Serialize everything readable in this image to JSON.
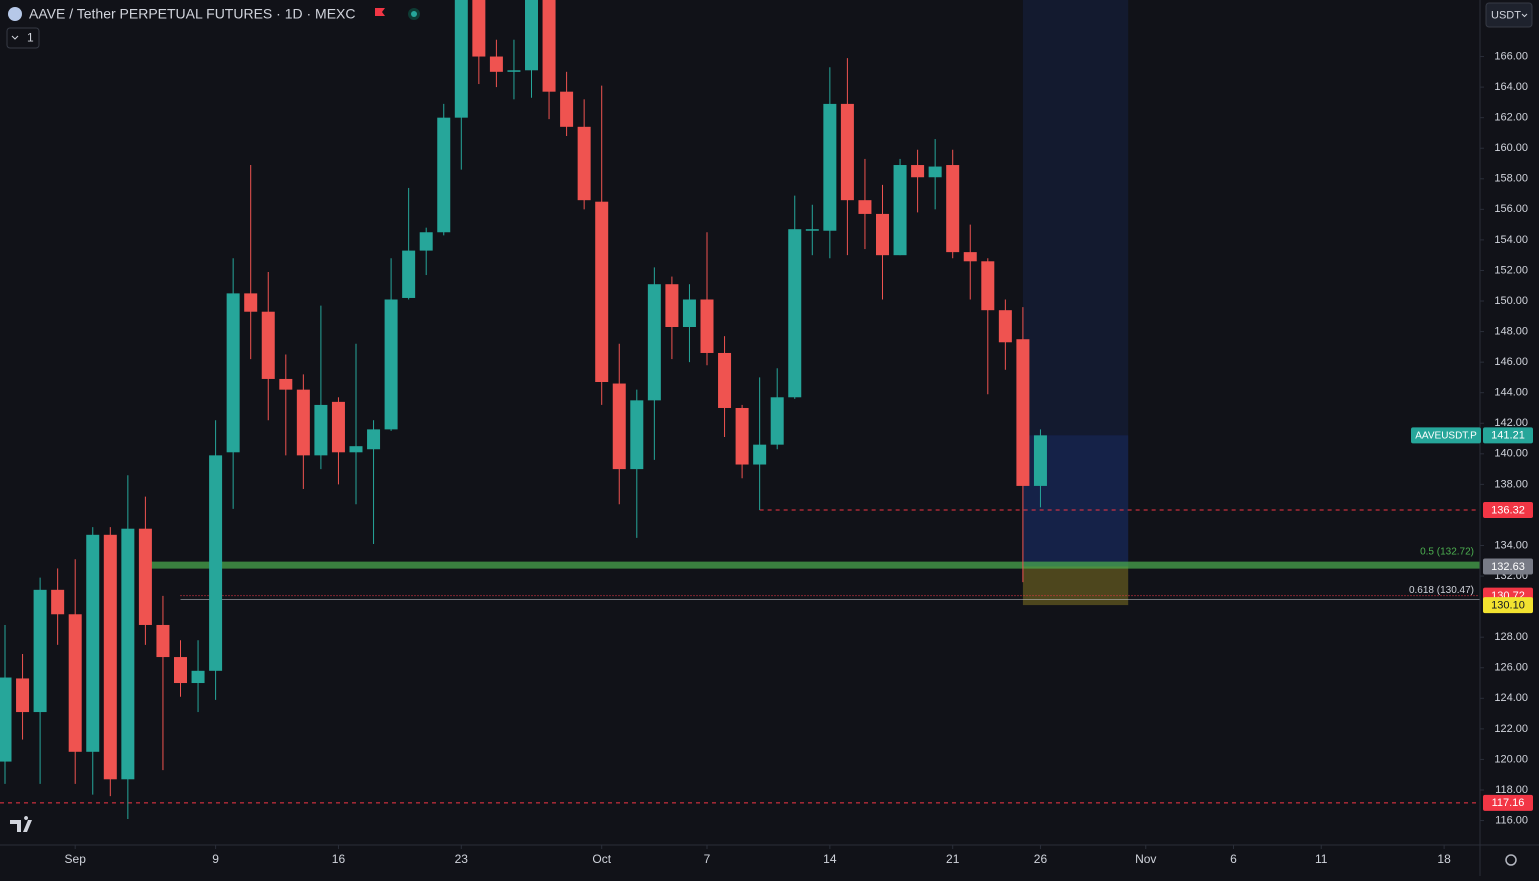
{
  "chart_data": {
    "type": "candlestick",
    "title": "AAVE / Tether PERPETUAL FUTURES · 1D · MEXC",
    "indicator_count": "1",
    "currency": "USDT",
    "symbol": "AAVEUSDT.P",
    "up_color": "#26a69a",
    "down_color": "#ef5350",
    "x": [
      "Aug 28",
      "Aug 29",
      "Aug 30",
      "Aug 31",
      "Sep 1",
      "Sep 2",
      "Sep 3",
      "Sep 4",
      "Sep 5",
      "Sep 6",
      "Sep 7",
      "Sep 8",
      "Sep 9",
      "Sep 10",
      "Sep 11",
      "Sep 12",
      "Sep 13",
      "Sep 14",
      "Sep 15",
      "Sep 16",
      "Sep 17",
      "Sep 18",
      "Sep 19",
      "Sep 20",
      "Sep 21",
      "Sep 22",
      "Sep 23",
      "Sep 24",
      "Sep 25",
      "Sep 26",
      "Sep 27",
      "Sep 28",
      "Sep 29",
      "Sep 30",
      "Oct 1",
      "Oct 2",
      "Oct 3",
      "Oct 4",
      "Oct 5",
      "Oct 6",
      "Oct 7",
      "Oct 8",
      "Oct 9",
      "Oct 10",
      "Oct 11",
      "Oct 12",
      "Oct 13",
      "Oct 14",
      "Oct 15",
      "Oct 16",
      "Oct 17",
      "Oct 18",
      "Oct 19",
      "Oct 20",
      "Oct 21",
      "Oct 22",
      "Oct 23",
      "Oct 24",
      "Oct 25",
      "Oct 26"
    ],
    "open": [
      119.86,
      125.3,
      123.1,
      131.1,
      129.5,
      120.5,
      134.7,
      118.7,
      135.1,
      128.8,
      126.7,
      125.0,
      125.8,
      140.1,
      150.5,
      149.3,
      144.9,
      144.2,
      139.9,
      143.4,
      140.1,
      140.3,
      141.6,
      150.2,
      153.3,
      154.5,
      162.0,
      171.5,
      166.0,
      165.0,
      165.1,
      170.2,
      163.7,
      161.4,
      156.5,
      144.6,
      139.0,
      143.5,
      151.1,
      148.3,
      150.1,
      146.6,
      143.0,
      139.3,
      140.6,
      143.7,
      154.6,
      154.6,
      162.9,
      156.6,
      155.7,
      153.0,
      158.9,
      158.1,
      158.9,
      153.2,
      152.6,
      149.4,
      147.5,
      137.9
    ],
    "high": [
      128.8,
      126.9,
      131.9,
      132.5,
      133.1,
      135.2,
      135.2,
      138.6,
      137.2,
      130.7,
      127.8,
      127.8,
      142.2,
      152.8,
      158.9,
      151.9,
      146.5,
      145.2,
      149.7,
      143.7,
      147.2,
      142.2,
      152.8,
      157.4,
      154.8,
      162.9,
      172.5,
      172.0,
      167.1,
      167.1,
      171.0,
      171.0,
      165.0,
      163.2,
      164.1,
      147.2,
      144.2,
      152.2,
      151.6,
      151.1,
      154.5,
      147.7,
      143.2,
      145.0,
      145.6,
      156.9,
      156.3,
      165.3,
      165.9,
      159.3,
      157.6,
      159.3,
      159.9,
      160.6,
      159.9,
      155.0,
      152.8,
      150.1,
      149.6,
      141.6
    ],
    "low": [
      118.4,
      121.3,
      118.4,
      127.5,
      118.4,
      117.7,
      117.6,
      116.1,
      127.5,
      119.3,
      124.1,
      123.1,
      123.9,
      136.4,
      146.2,
      142.2,
      139.9,
      137.7,
      139.0,
      138.0,
      136.7,
      134.1,
      141.5,
      150.1,
      151.7,
      154.3,
      158.6,
      164.2,
      164.0,
      163.2,
      163.3,
      161.9,
      160.8,
      156.0,
      143.2,
      136.7,
      134.5,
      139.6,
      146.2,
      146.0,
      145.8,
      141.1,
      138.4,
      136.32,
      140.3,
      143.6,
      153.0,
      152.8,
      153.0,
      153.4,
      150.1,
      153.0,
      155.8,
      156.0,
      152.8,
      150.1,
      143.9,
      145.5,
      131.6,
      136.5
    ],
    "close": [
      125.36,
      123.1,
      131.1,
      129.5,
      120.5,
      134.7,
      118.7,
      135.1,
      128.8,
      126.7,
      125.0,
      125.8,
      139.9,
      150.5,
      149.3,
      144.9,
      144.2,
      139.9,
      143.2,
      140.1,
      140.5,
      141.6,
      150.1,
      153.3,
      154.5,
      162.0,
      171.5,
      166.0,
      165.0,
      165.1,
      170.2,
      163.7,
      161.4,
      156.6,
      144.7,
      139.0,
      143.5,
      151.1,
      148.3,
      150.1,
      146.6,
      143.0,
      139.3,
      140.6,
      143.7,
      154.7,
      154.7,
      162.9,
      156.6,
      155.7,
      153.0,
      158.9,
      158.1,
      158.8,
      153.2,
      152.6,
      149.4,
      147.3,
      137.9,
      141.21
    ],
    "ylim": [
      114.4,
      169.7
    ],
    "yticks": [
      {
        "value": 166,
        "label": "166.00"
      },
      {
        "value": 164,
        "label": "164.00"
      },
      {
        "value": 162,
        "label": "162.00"
      },
      {
        "value": 160,
        "label": "160.00"
      },
      {
        "value": 158,
        "label": "158.00"
      },
      {
        "value": 156,
        "label": "156.00"
      },
      {
        "value": 154,
        "label": "154.00"
      },
      {
        "value": 152,
        "label": "152.00"
      },
      {
        "value": 150,
        "label": "150.00"
      },
      {
        "value": 148,
        "label": "148.00"
      },
      {
        "value": 146,
        "label": "146.00"
      },
      {
        "value": 144,
        "label": "144.00"
      },
      {
        "value": 142,
        "label": "142.00"
      },
      {
        "value": 140,
        "label": "140.00"
      },
      {
        "value": 138,
        "label": "138.00"
      },
      {
        "value": 134,
        "label": "134.00"
      },
      {
        "value": 132,
        "label": "132.00"
      },
      {
        "value": 128,
        "label": "128.00"
      },
      {
        "value": 126,
        "label": "126.00"
      },
      {
        "value": 124,
        "label": "124.00"
      },
      {
        "value": 122,
        "label": "122.00"
      },
      {
        "value": 120,
        "label": "120.00"
      },
      {
        "value": 118,
        "label": "118.00"
      },
      {
        "value": 116,
        "label": "116.00"
      }
    ],
    "xticks": [
      {
        "value": "Sep 1",
        "label": "Sep"
      },
      {
        "value": "Sep 9",
        "label": "9"
      },
      {
        "value": "Sep 16",
        "label": "16"
      },
      {
        "value": "Sep 23",
        "label": "23"
      },
      {
        "value": "Oct 1",
        "label": "Oct"
      },
      {
        "value": "Oct 7",
        "label": "7"
      },
      {
        "value": "Oct 14",
        "label": "14"
      },
      {
        "value": "Oct 21",
        "label": "21"
      },
      {
        "value": "Oct 26",
        "label": "26"
      },
      {
        "value": "Nov 1",
        "label": "Nov"
      },
      {
        "value": "Nov 6",
        "label": "6"
      },
      {
        "value": "Nov 11",
        "label": "11"
      },
      {
        "value": "Nov 18",
        "label": "18"
      }
    ],
    "hlines": [
      {
        "value": 136.32,
        "label": "136.32",
        "color": "#f23645",
        "style": "dashed",
        "from": "Oct 10"
      },
      {
        "value": 117.16,
        "label": "117.16",
        "color": "#f23645",
        "style": "dashed"
      },
      {
        "value": 130.72,
        "label": "130.72",
        "color": "#f23645",
        "style": "dotted",
        "from": "Sep 7"
      }
    ],
    "fib_levels": [
      {
        "value": 132.72,
        "label": "0.5 (132.72)",
        "color": "#4caf50",
        "width": 7,
        "from": "Sep 5"
      },
      {
        "value": 130.47,
        "label": "0.618 (130.47)",
        "color": "#d1d4dc",
        "width": 1,
        "from": "Sep 7"
      }
    ],
    "position": {
      "from": "Oct 25",
      "to": "Oct 31",
      "entry": {
        "value": 132.63,
        "label": "132.63"
      },
      "stop": {
        "value": 130.1,
        "label": "130.10"
      }
    }
  }
}
